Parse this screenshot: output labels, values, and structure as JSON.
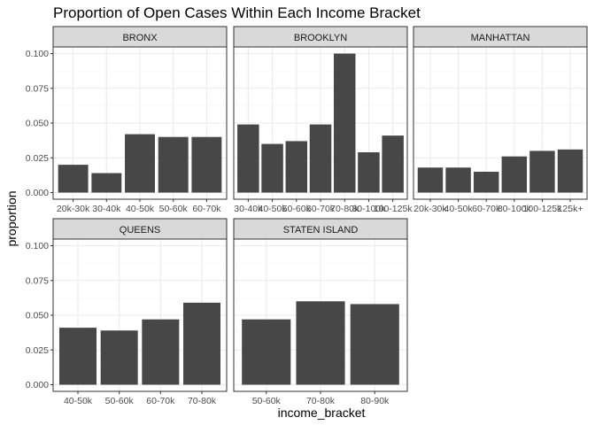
{
  "chart_data": {
    "type": "bar",
    "title": "Proportion of Open Cases Within Each Income Bracket",
    "xlabel": "income_bracket",
    "ylabel": "proportion",
    "ylim": [
      0,
      0.1
    ],
    "yticks": [
      "0.000",
      "0.025",
      "0.050",
      "0.075",
      "0.100"
    ],
    "grid": true,
    "colors": {
      "bar": "#474747",
      "strip_fill": "#d9d9d9",
      "panel_border": "#333333",
      "grid_major": "#ebebeb",
      "grid_minor": "#f5f5f5"
    },
    "panels": [
      {
        "name": "BRONX",
        "categories": [
          "20k-30k",
          "30-40k",
          "40-50k",
          "50-60k",
          "60-70k"
        ],
        "values": [
          0.02,
          0.014,
          0.042,
          0.04,
          0.04
        ]
      },
      {
        "name": "BROOKLYN",
        "categories": [
          "30-40k",
          "40-50k",
          "50-60k",
          "60-70k",
          "70-80k",
          "80-100k",
          "100-125k"
        ],
        "values": [
          0.049,
          0.035,
          0.037,
          0.049,
          0.1,
          0.029,
          0.041
        ]
      },
      {
        "name": "MANHATTAN",
        "categories": [
          "20k-30k",
          "40-50k",
          "60-70k",
          "80-100k",
          "100-125k",
          "125k+"
        ],
        "values": [
          0.018,
          0.018,
          0.015,
          0.026,
          0.03,
          0.031
        ]
      },
      {
        "name": "QUEENS",
        "categories": [
          "40-50k",
          "50-60k",
          "60-70k",
          "70-80k"
        ],
        "values": [
          0.041,
          0.039,
          0.047,
          0.059
        ]
      },
      {
        "name": "STATEN ISLAND",
        "categories": [
          "50-60k",
          "70-80k",
          "80-90k"
        ],
        "values": [
          0.047,
          0.06,
          0.058
        ]
      }
    ]
  }
}
